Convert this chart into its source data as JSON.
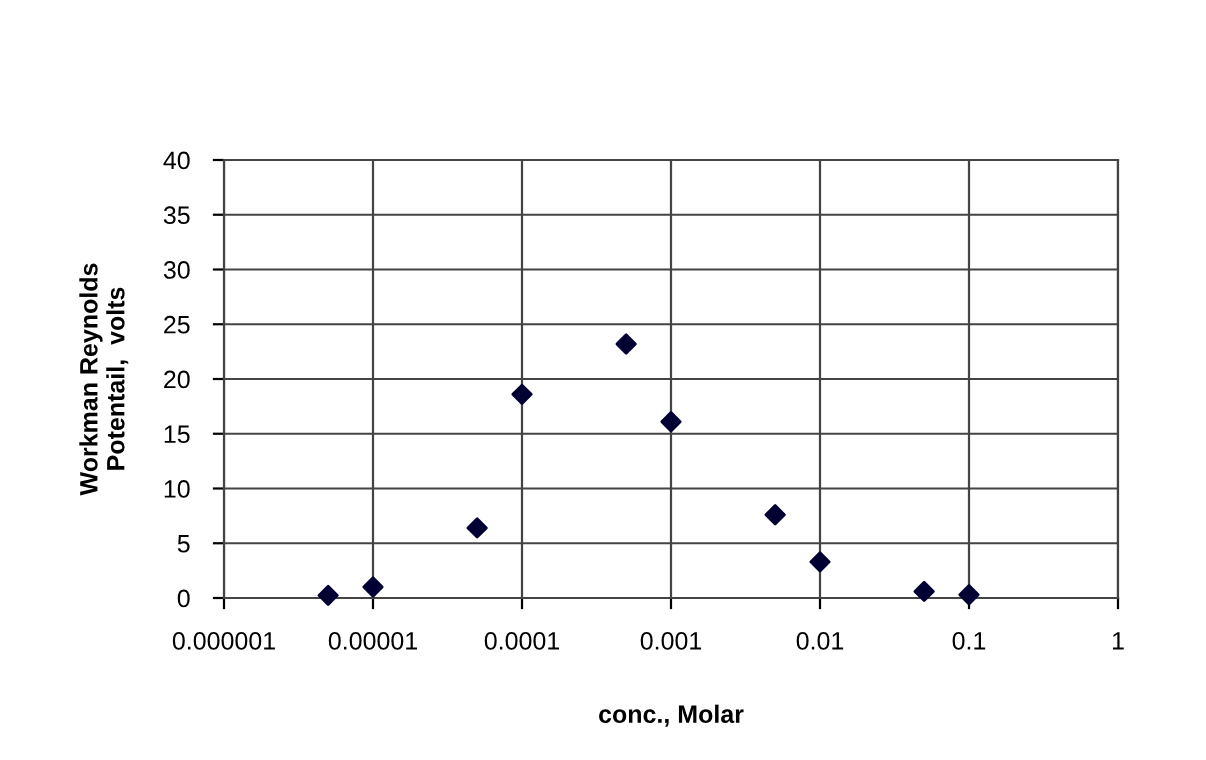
{
  "chart_data": {
    "type": "scatter",
    "xlabel": "conc., Molar",
    "ylabel": "Workman Reynolds\nPotentail,  volts",
    "x": [
      5e-06,
      1e-05,
      5e-05,
      0.0001,
      0.0005,
      0.001,
      0.005,
      0.01,
      0.05,
      0.1
    ],
    "values": [
      0.24,
      1.0,
      6.4,
      18.6,
      23.2,
      16.1,
      7.6,
      3.3,
      0.6,
      0.3
    ],
    "color": "#000033",
    "marker": "diamond",
    "log": "x",
    "grid": true,
    "xlim": [
      1e-06,
      1
    ],
    "xticks": [
      {
        "value": 1e-06,
        "label": "0.000001"
      },
      {
        "value": 1e-05,
        "label": "0.00001"
      },
      {
        "value": 0.0001,
        "label": "0.0001"
      },
      {
        "value": 0.001,
        "label": "0.001"
      },
      {
        "value": 0.01,
        "label": "0.01"
      },
      {
        "value": 0.1,
        "label": "0.1"
      },
      1
    ],
    "ylim": [
      0,
      40
    ],
    "yticks": [
      0,
      5,
      10,
      15,
      20,
      25,
      30,
      35,
      40
    ]
  }
}
